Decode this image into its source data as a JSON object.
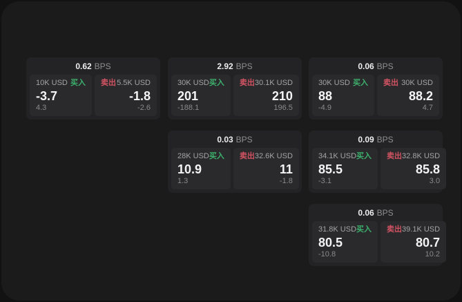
{
  "colors": {
    "buy": "#3cb06c",
    "sell": "#d15362",
    "surface": "#1b1b1c",
    "card_bg": "#232325",
    "tile_bg": "#2a2a2c"
  },
  "cards": [
    {
      "bps_value": "0.62",
      "bps_unit": "BPS",
      "buy": {
        "amount": "10K USD",
        "side": "买入",
        "price": "-3.7",
        "change": "4.3"
      },
      "sell": {
        "side": "卖出",
        "amount": "5.5K USD",
        "price": "-1.8",
        "change": "-2.6"
      }
    },
    {
      "bps_value": "2.92",
      "bps_unit": "BPS",
      "buy": {
        "amount": "30K USD",
        "side": "买入",
        "price": "201",
        "change": "-188.1"
      },
      "sell": {
        "side": "卖出",
        "amount": "30.1K USD",
        "price": "210",
        "change": "196.5"
      }
    },
    {
      "bps_value": "0.06",
      "bps_unit": "BPS",
      "buy": {
        "amount": "30K USD",
        "side": "买入",
        "price": "88",
        "change": "-4.9"
      },
      "sell": {
        "side": "卖出",
        "amount": "30K USD",
        "price": "88.2",
        "change": "4.7"
      }
    },
    {
      "bps_value": "0.03",
      "bps_unit": "BPS",
      "buy": {
        "amount": "28K USD",
        "side": "买入",
        "price": "10.9",
        "change": "1.3"
      },
      "sell": {
        "side": "卖出",
        "amount": "32.6K USD",
        "price": "11",
        "change": "-1.8"
      }
    },
    {
      "bps_value": "0.09",
      "bps_unit": "BPS",
      "buy": {
        "amount": "34.1K USD",
        "side": "买入",
        "price": "85.5",
        "change": "-3.1"
      },
      "sell": {
        "side": "卖出",
        "amount": "32.8K USD",
        "price": "85.8",
        "change": "3.0"
      }
    },
    {
      "bps_value": "0.06",
      "bps_unit": "BPS",
      "buy": {
        "amount": "31.8K USD",
        "side": "买入",
        "price": "80.5",
        "change": "-10.8"
      },
      "sell": {
        "side": "卖出",
        "amount": "39.1K USD",
        "price": "80.7",
        "change": "10.2"
      }
    }
  ]
}
